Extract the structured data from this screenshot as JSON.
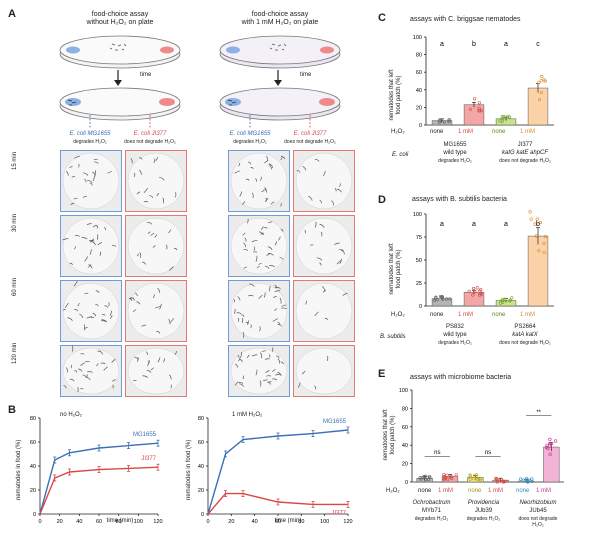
{
  "panels": {
    "A": {
      "label": "A",
      "assay_left_title": "food-choice assay",
      "assay_left_subtitle": "without H₂O₂ on plate",
      "assay_right_title": "food-choice assay",
      "assay_right_subtitle": "with 1 mM H₂O₂ on plate",
      "time_label": "time",
      "strain_left_name": "E. coli MG1655",
      "strain_left_note": "degrades H₂O₂",
      "strain_right_name": "E. coli JI377",
      "strain_right_note": "does not degrade H₂O₂",
      "rows": [
        "15 min",
        "30 min",
        "60 min",
        "120 min"
      ]
    },
    "B": {
      "label": "B",
      "left_title": "no H₂O₂",
      "right_title": "1 mM H₂O₂",
      "ylabel": "nematodes in food (%)",
      "xlabel": "time (min)",
      "series_mg": "MG1655",
      "series_ji": "JI377"
    },
    "C": {
      "label": "C",
      "title": "assays with C. briggsae nematodes",
      "ylabel": "nematodes that left food patch (%)",
      "h2o2": "H₂O₂",
      "conds": [
        "none",
        "1 mM",
        "none",
        "1 mM"
      ],
      "sig": [
        "a",
        "b",
        "a",
        "c"
      ],
      "bacteria_label": "E. coli",
      "strain1": "MG1655",
      "strain1_sub": "wild type",
      "strain1_note": "degrades H₂O₂",
      "strain2": "JI377",
      "strain2_sub": "katG katE ahpCF",
      "strain2_note": "does not degrade H₂O₂"
    },
    "D": {
      "label": "D",
      "title": "assays with B. subtilis bacteria",
      "ylabel": "nematodes that left food patch (%)",
      "h2o2": "H₂O₂",
      "conds": [
        "none",
        "1 mM",
        "none",
        "1 mM"
      ],
      "sig": [
        "a",
        "a",
        "a",
        "b"
      ],
      "bacteria_label": "B. subtilis",
      "strain1": "PS832",
      "strain1_sub": "wild type",
      "strain1_note": "degrades H₂O₂",
      "strain2": "PS2664",
      "strain2_sub": "katA katX",
      "strain2_note": "does not degrade H₂O₂"
    },
    "E": {
      "label": "E",
      "title": "assays with microbiome bacteria",
      "ylabel": "nematodes that left food patch (%)",
      "h2o2": "H₂O₂",
      "conds": [
        "none",
        "1 mM",
        "none",
        "1 mM",
        "none",
        "1 mM"
      ],
      "sig": [
        "ns",
        "ns",
        "**"
      ],
      "strain1": "Ochrobactrum",
      "strain1_sub": "MYb71",
      "strain1_note": "degrades H₂O₂",
      "strain2": "Providencia",
      "strain2_sub": "JUb39",
      "strain2_note": "degrades H₂O₂",
      "strain3": "Neorhizobium",
      "strain3_sub": "JUb45",
      "strain3_note": "does not degrade H₂O₂"
    }
  },
  "chart_data": [
    {
      "type": "line",
      "panel": "B-left",
      "title": "no H₂O₂",
      "xlabel": "time (min)",
      "ylabel": "nematodes in food (%)",
      "xlim": [
        0,
        120
      ],
      "ylim": [
        0,
        80
      ],
      "x": [
        0,
        15,
        30,
        60,
        90,
        120
      ],
      "series": [
        {
          "name": "MG1655",
          "color": "#3b6fb6",
          "values": [
            0,
            45,
            51,
            55,
            57,
            59
          ]
        },
        {
          "name": "JI377",
          "color": "#d94848",
          "values": [
            0,
            30,
            35,
            37,
            38,
            39
          ]
        }
      ]
    },
    {
      "type": "line",
      "panel": "B-right",
      "title": "1 mM H₂O₂",
      "xlabel": "time (min)",
      "ylabel": "nematodes in food (%)",
      "xlim": [
        0,
        120
      ],
      "ylim": [
        0,
        80
      ],
      "x": [
        0,
        15,
        30,
        60,
        90,
        120
      ],
      "series": [
        {
          "name": "MG1655",
          "color": "#3b6fb6",
          "values": [
            0,
            50,
            62,
            65,
            67,
            70
          ]
        },
        {
          "name": "JI377",
          "color": "#d94848",
          "values": [
            0,
            17,
            17,
            10,
            8,
            8
          ]
        }
      ]
    },
    {
      "type": "bar",
      "panel": "C",
      "ylim": [
        0,
        100
      ],
      "yticks": [
        0,
        20,
        40,
        60,
        80,
        100
      ],
      "categories": [
        "none",
        "1 mM",
        "none",
        "1 mM"
      ],
      "values": [
        5,
        23,
        7,
        42
      ],
      "colors": [
        "#b5b5b5",
        "#f2a6a6",
        "#c6e48a",
        "#fcd3a9"
      ]
    },
    {
      "type": "bar",
      "panel": "D",
      "ylim": [
        0,
        100
      ],
      "yticks": [
        0,
        25,
        50,
        75,
        100
      ],
      "categories": [
        "none",
        "1 mM",
        "none",
        "1 mM"
      ],
      "values": [
        8,
        15,
        6,
        76
      ],
      "colors": [
        "#b5b5b5",
        "#f2a6a6",
        "#c6e48a",
        "#fcd3a9"
      ]
    },
    {
      "type": "bar",
      "panel": "E",
      "ylim": [
        0,
        100
      ],
      "yticks": [
        0,
        20,
        40,
        60,
        80,
        100
      ],
      "categories": [
        "none",
        "1 mM",
        "none",
        "1 mM",
        "none",
        "1 mM"
      ],
      "values": [
        4,
        6,
        5,
        2,
        1,
        38
      ],
      "colors": [
        "#b5b5b5",
        "#f2a6a6",
        "#f3ec8a",
        "#f2a6a6",
        "#bfe0f2",
        "#f2b3d6"
      ]
    }
  ]
}
